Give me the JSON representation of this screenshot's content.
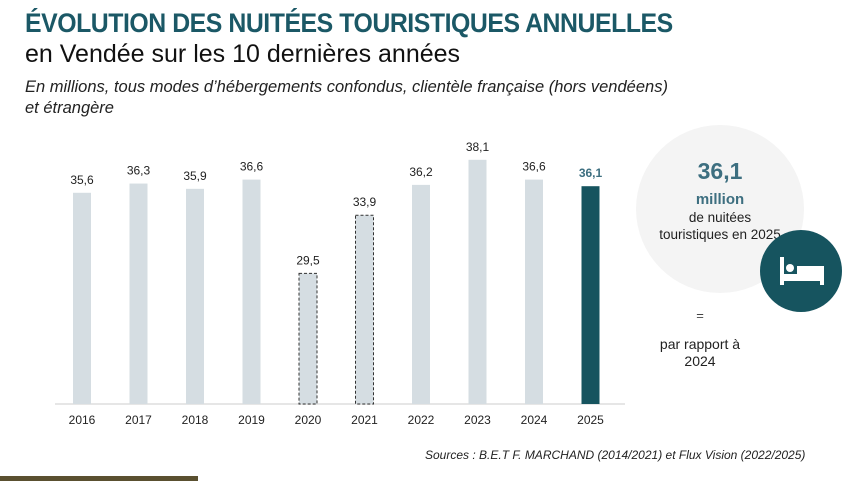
{
  "header": {
    "title": "ÉVOLUTION DES NUITÉES TOURISTIQUES ANNUELLES",
    "subtitle": "en Vendée sur les 10 dernières années",
    "note": "En millions, tous modes d’hébergements confondus, clientèle française (hors vendéens) et étrangère"
  },
  "chart_data": {
    "type": "bar",
    "categories": [
      "2016",
      "2017",
      "2018",
      "2019",
      "2020",
      "2021",
      "2022",
      "2023",
      "2024",
      "2025"
    ],
    "values": [
      35.6,
      36.3,
      35.9,
      36.6,
      29.5,
      33.9,
      36.2,
      38.1,
      36.6,
      36.1
    ],
    "labels": [
      "35,6",
      "36,3",
      "35,9",
      "36,6",
      "29,5",
      "33,9",
      "36,2",
      "38,1",
      "36,6",
      "36,1"
    ],
    "dashed": [
      "2020",
      "2021"
    ],
    "highlight": "2025",
    "ylim": [
      19.6,
      40
    ],
    "grid": false,
    "colors": {
      "bar": "#d5dde2",
      "highlight": "#16545f",
      "highlight_label": "#3d6f80"
    }
  },
  "kpi": {
    "value": "36,1",
    "unit": "million",
    "desc": "de nuitées touristiques en 2025",
    "icon": "bed-icon",
    "change": "=",
    "compare": "par rapport à 2024"
  },
  "source": "Sources : B.E.T F. MARCHAND (2014/2021) et Flux Vision (2022/2025)"
}
